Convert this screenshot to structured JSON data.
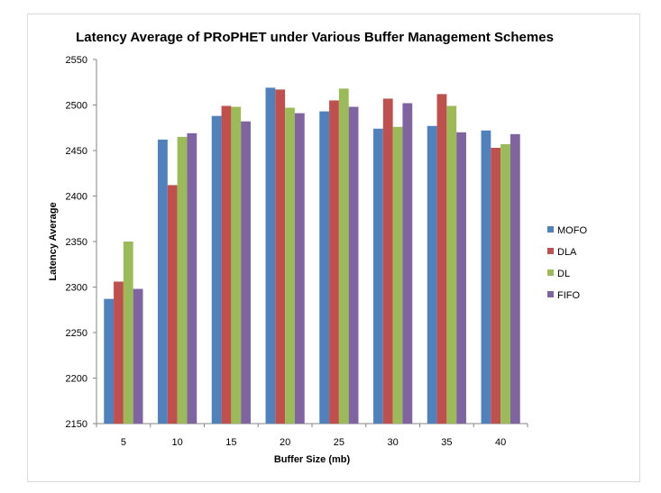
{
  "chart_data": {
    "type": "bar",
    "title": "Latency Average of PRoPHET under Various Buffer Management Schemes",
    "xlabel": "Buffer Size (mb)",
    "ylabel": "Latency Average",
    "categories": [
      "5",
      "10",
      "15",
      "20",
      "25",
      "30",
      "35",
      "40"
    ],
    "ylim": [
      2150,
      2550
    ],
    "yticks": [
      2150,
      2200,
      2250,
      2300,
      2350,
      2400,
      2450,
      2500,
      2550
    ],
    "grid": false,
    "legend_position": "right",
    "series": [
      {
        "name": "MOFO",
        "color": "#4f81bd",
        "values": [
          2287,
          2462,
          2488,
          2519,
          2493,
          2474,
          2477,
          2472
        ]
      },
      {
        "name": "DLA",
        "color": "#c0504d",
        "values": [
          2306,
          2412,
          2499,
          2517,
          2505,
          2507,
          2512,
          2453
        ]
      },
      {
        "name": "DL",
        "color": "#9bbb59",
        "values": [
          2350,
          2465,
          2498,
          2497,
          2518,
          2476,
          2499,
          2457
        ]
      },
      {
        "name": "FIFO",
        "color": "#8064a2",
        "values": [
          2298,
          2469,
          2482,
          2491,
          2498,
          2502,
          2470,
          2468
        ]
      }
    ]
  }
}
